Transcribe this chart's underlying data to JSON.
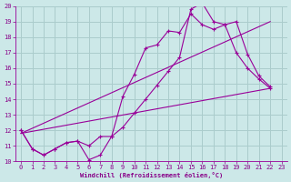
{
  "bg_color": "#cce8e8",
  "line_color": "#990099",
  "grid_color": "#aacccc",
  "xlabel": "Windchill (Refroidissement éolien,°C)",
  "xlabel_color": "#880088",
  "tick_color": "#880088",
  "xlim": [
    -0.5,
    23.5
  ],
  "ylim": [
    10,
    20
  ],
  "yticks": [
    10,
    11,
    12,
    13,
    14,
    15,
    16,
    17,
    18,
    19,
    20
  ],
  "xticks": [
    0,
    1,
    2,
    3,
    4,
    5,
    6,
    7,
    8,
    9,
    10,
    11,
    12,
    13,
    14,
    15,
    16,
    17,
    18,
    19,
    20,
    21,
    22,
    23
  ],
  "series": [
    {
      "x": [
        0,
        1,
        2,
        3,
        4,
        5,
        6,
        7,
        8,
        9,
        10,
        11,
        12,
        13,
        14,
        15,
        16,
        17,
        18,
        19,
        20,
        21,
        22
      ],
      "y": [
        12.0,
        10.8,
        10.4,
        10.8,
        11.2,
        11.3,
        10.1,
        10.4,
        11.6,
        14.2,
        15.6,
        17.3,
        17.5,
        18.4,
        18.3,
        19.5,
        18.8,
        18.5,
        18.8,
        19.0,
        16.9,
        15.5,
        14.8
      ],
      "marker": true
    },
    {
      "x": [
        0,
        1,
        2,
        3,
        4,
        5,
        6,
        7,
        8,
        9,
        10,
        11,
        12,
        13,
        14,
        15,
        16,
        17,
        18,
        19,
        20,
        21,
        22
      ],
      "y": [
        12.0,
        10.8,
        10.4,
        10.8,
        11.2,
        11.3,
        11.0,
        11.6,
        11.6,
        12.2,
        13.1,
        14.0,
        14.9,
        15.8,
        16.7,
        19.8,
        20.2,
        19.0,
        18.8,
        17.0,
        16.0,
        15.3,
        14.7
      ],
      "marker": true
    },
    {
      "x": [
        0,
        22
      ],
      "y": [
        11.8,
        14.7
      ],
      "marker": false
    },
    {
      "x": [
        0,
        22
      ],
      "y": [
        11.8,
        19.0
      ],
      "marker": false
    }
  ]
}
